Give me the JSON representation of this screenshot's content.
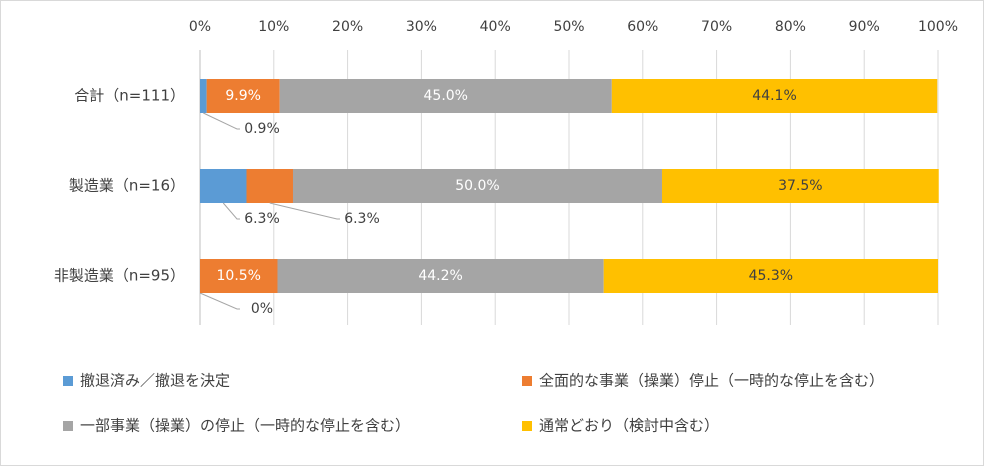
{
  "chart_data": {
    "type": "stacked-bar-horizontal",
    "categories": [
      "合計（n=111）",
      "製造業（n=16）",
      "非製造業（n=95）"
    ],
    "series": [
      {
        "name": "撤退済み／撤退を決定",
        "color": "#5b9bd5",
        "values": [
          0.9,
          6.3,
          0
        ],
        "value_labels": [
          "0.9%",
          "6.3%",
          "0%"
        ]
      },
      {
        "name": "全面的な事業（操業）停止（一時的な停止を含む）",
        "color": "#ed7d31",
        "values": [
          9.9,
          6.3,
          10.5
        ],
        "value_labels": [
          "9.9%",
          "6.3%",
          "10.5%"
        ]
      },
      {
        "name": "一部事業（操業）の停止（一時的な停止を含む）",
        "color": "#a5a5a5",
        "values": [
          45.0,
          50.0,
          44.2
        ],
        "value_labels": [
          "45.0%",
          "50.0%",
          "44.2%"
        ]
      },
      {
        "name": "通常どおり（検討中含む）",
        "color": "#ffc000",
        "values": [
          44.1,
          37.5,
          45.3
        ],
        "value_labels": [
          "44.1%",
          "37.5%",
          "45.3%"
        ]
      }
    ],
    "xlim": [
      0,
      100
    ],
    "xticks": [
      {
        "value": 0,
        "label": "0%"
      },
      {
        "value": 10,
        "label": "10%"
      },
      {
        "value": 20,
        "label": "20%"
      },
      {
        "value": 30,
        "label": "30%"
      },
      {
        "value": 40,
        "label": "40%"
      },
      {
        "value": 50,
        "label": "50%"
      },
      {
        "value": 60,
        "label": "60%"
      },
      {
        "value": 70,
        "label": "70%"
      },
      {
        "value": 80,
        "label": "80%"
      },
      {
        "value": 90,
        "label": "90%"
      },
      {
        "value": 100,
        "label": "100%"
      }
    ],
    "grid": true,
    "legend": "bottom"
  }
}
